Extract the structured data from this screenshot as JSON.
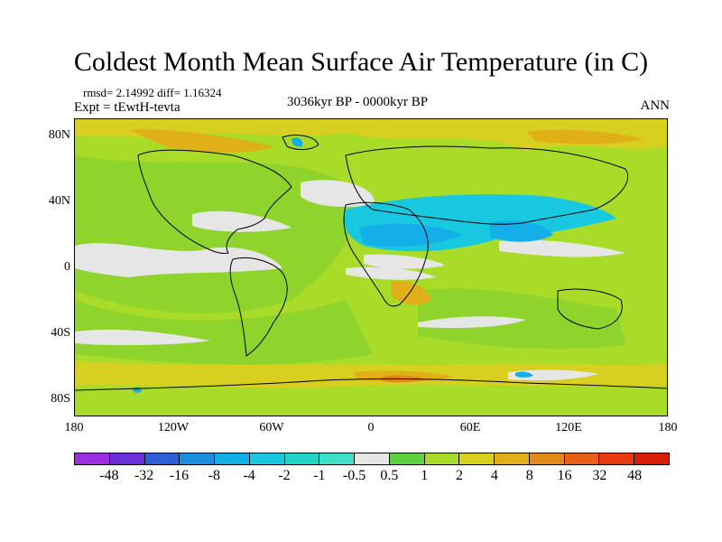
{
  "title": "Coldest Month Mean Surface Air Temperature (in C)",
  "stats": "rmsd= 2.14992 diff= 1.16324",
  "experiment": "Expt = tEwtH-tevta",
  "period": "3036kyr BP - 0000kyr BP",
  "season": "ANN",
  "lat_labels": [
    "80N",
    "40N",
    "0",
    "40S",
    "80S"
  ],
  "lon_labels": [
    "180",
    "120W",
    "60W",
    "0",
    "60E",
    "120E",
    "180"
  ],
  "colorbar": {
    "labels": [
      "-48",
      "-32",
      "-16",
      "-8",
      "-4",
      "-2",
      "-1",
      "-0.5",
      "0.5",
      "1",
      "2",
      "4",
      "8",
      "16",
      "32",
      "48"
    ],
    "colors": [
      "#9b2fe0",
      "#6a2fd8",
      "#2f5fd8",
      "#1a8fe0",
      "#14aee8",
      "#17c8e0",
      "#22d4c8",
      "#3fe0c8",
      "#e6e6e6",
      "#5fd040",
      "#a8dc28",
      "#d8d020",
      "#e0b018",
      "#e08a18",
      "#e86018",
      "#e83a10",
      "#d81e08"
    ]
  },
  "map_colors": {
    "base": "#a8dc28",
    "ocean_green": "#8ed42c",
    "warm": "#d8d020",
    "warmer": "#e0b018",
    "hot": "#e08a18",
    "neutral": "#e6e6e6",
    "cool": "#17c8e0",
    "cooler": "#14aee8",
    "coast": "#000000"
  }
}
